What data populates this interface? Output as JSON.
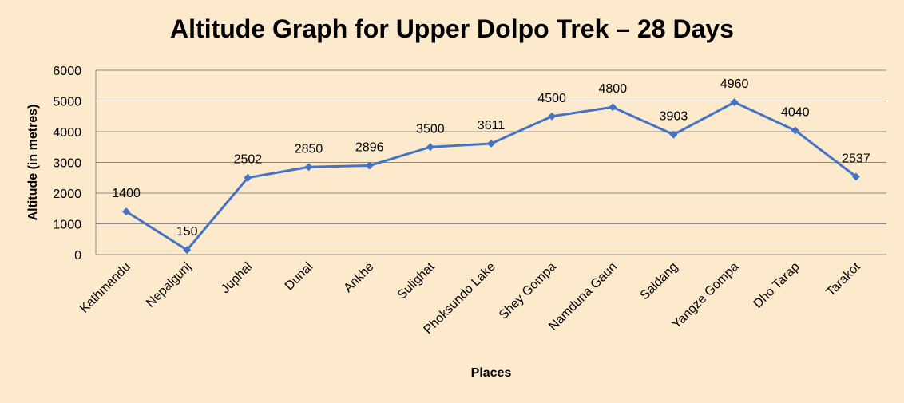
{
  "chart_data": {
    "type": "line",
    "title": "Altitude Graph for Upper Dolpo Trek – 28 Days",
    "xlabel": "Places",
    "ylabel": "Altitude (in metres)",
    "categories": [
      "Kathmandu",
      "Nepalgunj",
      "Juphal",
      "Dunai",
      "Ankhe",
      "Sulighat",
      "Phoksundo Lake",
      "Shey Gompa",
      "Namduna Gaun",
      "Saldang",
      "Yangze Gompa",
      "Dho Tarap",
      "Tarakot"
    ],
    "values": [
      1400,
      150,
      2502,
      2850,
      2896,
      3500,
      3611,
      4500,
      4800,
      3903,
      4960,
      4040,
      2537
    ],
    "ylim": [
      0,
      6000
    ],
    "yticks": [
      0,
      1000,
      2000,
      3000,
      4000,
      5000,
      6000
    ],
    "grid": true,
    "legend": "none",
    "marker": "diamond",
    "colors": {
      "line": "#4472C4",
      "grid": "#898989",
      "background": "#FDEACC"
    }
  }
}
